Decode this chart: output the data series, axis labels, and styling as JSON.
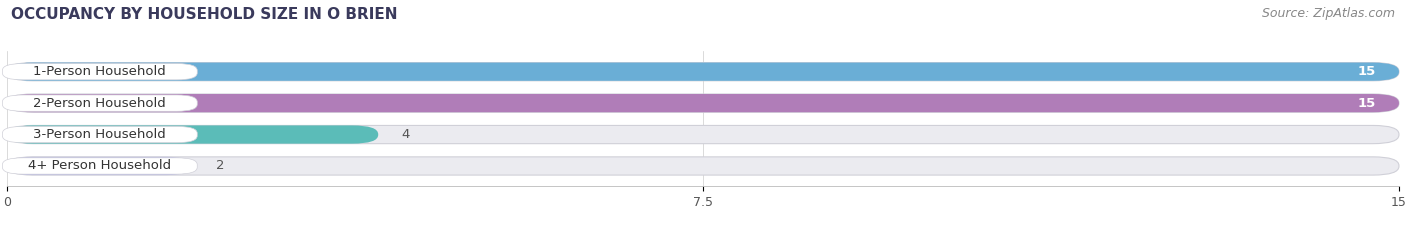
{
  "title": "OCCUPANCY BY HOUSEHOLD SIZE IN O BRIEN",
  "source": "Source: ZipAtlas.com",
  "categories": [
    "1-Person Household",
    "2-Person Household",
    "3-Person Household",
    "4+ Person Household"
  ],
  "values": [
    15,
    15,
    4,
    2
  ],
  "bar_colors": [
    "#6aaed6",
    "#b07db8",
    "#5bbcb8",
    "#b3b3e0"
  ],
  "bar_bg_color": "#ebebf0",
  "label_bg_color": "#ffffff",
  "fig_bg_color": "#ffffff",
  "xlim": [
    0,
    15
  ],
  "xticks": [
    0,
    7.5,
    15
  ],
  "bar_height": 0.58,
  "label_fontsize": 9.5,
  "value_fontsize": 9.5,
  "title_fontsize": 11,
  "source_fontsize": 9,
  "label_text_color": "#333333",
  "value_in_bar_color": "#ffffff",
  "value_outside_color": "#555555"
}
